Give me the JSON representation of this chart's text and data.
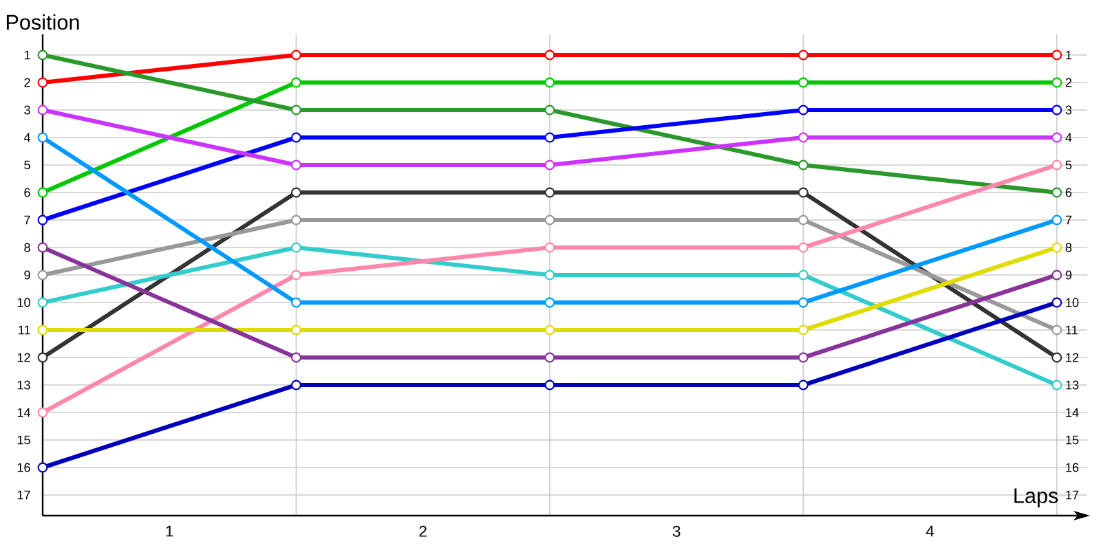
{
  "chart_data": {
    "type": "line",
    "xlabel": "Laps",
    "ylabel": "Position",
    "x": [
      0,
      1,
      2,
      3,
      4
    ],
    "series": [
      {
        "color": "#ff0000",
        "values": [
          2,
          1,
          1,
          1,
          1
        ]
      },
      {
        "color": "#00c800",
        "values": [
          6,
          2,
          2,
          2,
          2
        ]
      },
      {
        "color": "#2a982a",
        "values": [
          1,
          3,
          3,
          5,
          6
        ]
      },
      {
        "color": "#0000ff",
        "values": [
          7,
          4,
          4,
          3,
          3
        ]
      },
      {
        "color": "#cc33ff",
        "values": [
          3,
          5,
          5,
          4,
          4
        ]
      },
      {
        "color": "#333333",
        "values": [
          12,
          6,
          6,
          6,
          12
        ]
      },
      {
        "color": "#999999",
        "values": [
          9,
          7,
          7,
          7,
          11
        ]
      },
      {
        "color": "#33cccc",
        "values": [
          10,
          8,
          9,
          9,
          13
        ]
      },
      {
        "color": "#ff88aa",
        "values": [
          14,
          9,
          8,
          8,
          5
        ]
      },
      {
        "color": "#0099ff",
        "values": [
          4,
          10,
          10,
          10,
          7
        ]
      },
      {
        "color": "#dddd00",
        "values": [
          11,
          11,
          11,
          11,
          8
        ]
      },
      {
        "color": "#883399",
        "values": [
          8,
          12,
          12,
          12,
          9
        ]
      },
      {
        "color": "#0000bb",
        "values": [
          16,
          13,
          13,
          13,
          10
        ]
      }
    ],
    "xlim": [
      0,
      4.12
    ],
    "xticks": [
      {
        "value": 0.5,
        "label": "1"
      },
      {
        "value": 1,
        "label": null
      },
      {
        "value": 1.5,
        "label": "2"
      },
      {
        "value": 2,
        "label": null
      },
      {
        "value": 2.5,
        "label": "3"
      },
      {
        "value": 3,
        "label": null
      },
      {
        "value": 3.5,
        "label": "4"
      },
      {
        "value": 4,
        "label": null
      }
    ],
    "ylim": [
      17.75,
      0.25
    ],
    "yticks": [
      1,
      2,
      3,
      4,
      5,
      6,
      7,
      8,
      9,
      10,
      11,
      12,
      13,
      14,
      15,
      16,
      17
    ],
    "y2lim": [
      17.75,
      0.25
    ],
    "y2ticks": [
      1,
      2,
      3,
      4,
      5,
      6,
      7,
      8,
      9,
      10,
      11,
      12,
      13,
      14,
      15,
      16,
      17
    ],
    "grid": true,
    "marker": "circle",
    "line_style": "solid"
  }
}
